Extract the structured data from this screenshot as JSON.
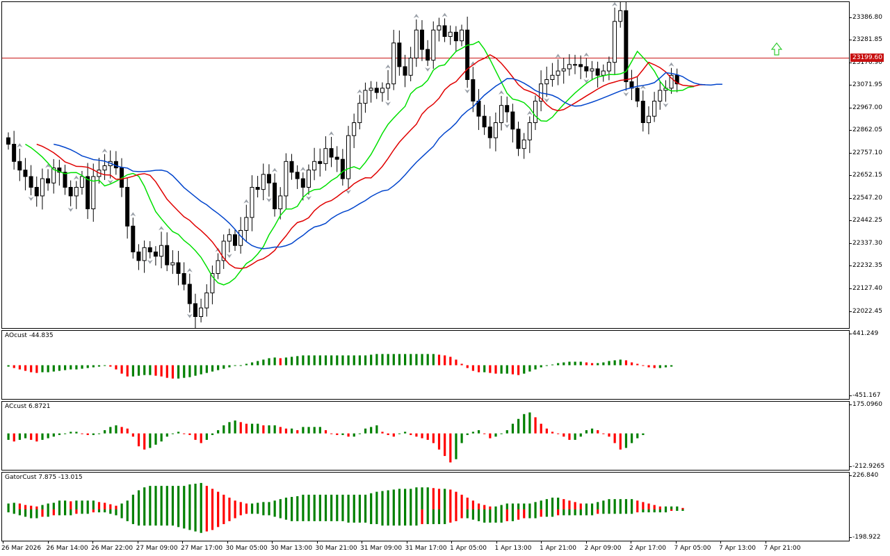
{
  "main": {
    "price_line": "23199.60",
    "y_ticks": [
      "23386.80",
      "23281.85",
      "23176.90",
      "23071.95",
      "22967.00",
      "22862.05",
      "22757.10",
      "22652.15",
      "22547.20",
      "22442.25",
      "22337.30",
      "22232.35",
      "22127.40",
      "22022.45"
    ],
    "colors": {
      "bull": "#ffffff",
      "bear": "#000000",
      "ma_green": "#00e000",
      "ma_red": "#e00000",
      "ma_blue": "#0044cc",
      "price_line": "#c81010",
      "fractal": "#9aa0a8",
      "arrow": "#33cc33"
    }
  },
  "ao": {
    "label": "AOcust -44.835",
    "y_max": "441.249",
    "y_min": "-451.167"
  },
  "ac": {
    "label": "ACcust 6.8721",
    "y_max": "175.0960",
    "y_min": "-212.9265"
  },
  "gator": {
    "label": "GatorCust 7.875 -13.015",
    "y_max": "226.840",
    "y_min": "-198.922"
  },
  "time_axis": [
    "26 Mar 2026",
    "26 Mar 14:00",
    "26 Mar 22:00",
    "27 Mar 09:00",
    "27 Mar 17:00",
    "30 Mar 05:00",
    "30 Mar 13:00",
    "30 Mar 21:00",
    "31 Mar 09:00",
    "31 Mar 17:00",
    "1 Apr 05:00",
    "1 Apr 13:00",
    "1 Apr 21:00",
    "2 Apr 09:00",
    "2 Apr 17:00",
    "7 Apr 05:00",
    "7 Apr 13:00",
    "7 Apr 21:00"
  ],
  "chart_data": [
    {
      "type": "candlestick",
      "ylim": [
        21950,
        23450
      ],
      "price_line": 23199.6,
      "close": [
        22800,
        22720,
        22680,
        22650,
        22600,
        22560,
        22640,
        22620,
        22690,
        22670,
        22600,
        22560,
        22600,
        22650,
        22500,
        22650,
        22680,
        22700,
        22720,
        22690,
        22600,
        22420,
        22300,
        22260,
        22320,
        22300,
        22280,
        22330,
        22240,
        22250,
        22200,
        22150,
        22060,
        22000,
        22040,
        22110,
        22200,
        22260,
        22350,
        22380,
        22330,
        22400,
        22460,
        22600,
        22590,
        22660,
        22620,
        22500,
        22560,
        22720,
        22670,
        22640,
        22600,
        22680,
        22720,
        22710,
        22780,
        22740,
        22730,
        22640,
        22840,
        22900,
        22990,
        23050,
        23060,
        23040,
        23060,
        23080,
        23270,
        23160,
        23120,
        23200,
        23330,
        23240,
        23190,
        23330,
        23350,
        23300,
        23320,
        23280,
        23330,
        23100,
        23000,
        22930,
        22880,
        22830,
        22900,
        22980,
        22950,
        22870,
        22780,
        22820,
        22900,
        23000,
        23080,
        23100,
        23120,
        23140,
        23150,
        23170,
        23170,
        23160,
        23140,
        23150,
        23120,
        23140,
        23180,
        23370,
        23420,
        23090,
        23060,
        23000,
        22900,
        22930,
        23000,
        23050,
        23060,
        23120,
        23080
      ],
      "bull_color": "#ffffff",
      "bear_color": "#000000",
      "moving_averages": [
        {
          "color": "#00e000"
        },
        {
          "color": "#e00000"
        },
        {
          "color": "#0044cc"
        }
      ]
    },
    {
      "type": "bar",
      "name": "AOcust",
      "ylim": [
        -451.167,
        441.249
      ],
      "color_up": "#008000",
      "color_down": "#ff0000",
      "values": [
        -20,
        -40,
        -60,
        -80,
        -100,
        -110,
        -100,
        -100,
        -90,
        -80,
        -70,
        -60,
        -60,
        -50,
        -40,
        -30,
        -20,
        -10,
        -20,
        -60,
        -120,
        -160,
        -160,
        -150,
        -140,
        -140,
        -150,
        -160,
        -180,
        -190,
        -190,
        -180,
        -170,
        -150,
        -130,
        -110,
        -90,
        -70,
        -50,
        -30,
        -10,
        0,
        20,
        40,
        60,
        80,
        100,
        110,
        100,
        110,
        120,
        130,
        140,
        140,
        140,
        140,
        140,
        140,
        140,
        140,
        140,
        140,
        140,
        140,
        150,
        160,
        160,
        160,
        160,
        160,
        160,
        160,
        160,
        160,
        160,
        160,
        150,
        140,
        120,
        80,
        20,
        -40,
        -80,
        -100,
        -100,
        -110,
        -120,
        -120,
        -120,
        -130,
        -140,
        -120,
        -90,
        -60,
        -30,
        -10,
        10,
        30,
        40,
        50,
        50,
        50,
        40,
        30,
        30,
        40,
        60,
        70,
        80,
        70,
        40,
        20,
        0,
        -30,
        -40,
        -40,
        -30,
        -20
      ]
    },
    {
      "type": "bar",
      "name": "ACcust",
      "ylim": [
        -212.9265,
        175.096
      ],
      "color_up": "#008000",
      "color_down": "#ff0000",
      "values": [
        -40,
        -50,
        -40,
        -30,
        -40,
        -50,
        -40,
        -30,
        -20,
        -10,
        0,
        10,
        10,
        0,
        -10,
        -10,
        0,
        20,
        40,
        50,
        40,
        30,
        -20,
        -80,
        -100,
        -90,
        -70,
        -50,
        -20,
        0,
        10,
        0,
        -10,
        -40,
        -60,
        -40,
        -10,
        20,
        50,
        70,
        80,
        70,
        60,
        60,
        60,
        50,
        50,
        50,
        40,
        30,
        30,
        20,
        40,
        40,
        40,
        40,
        20,
        0,
        -10,
        -10,
        -20,
        -20,
        0,
        30,
        40,
        50,
        10,
        -10,
        -20,
        0,
        10,
        -10,
        -20,
        -30,
        -40,
        -60,
        -100,
        -140,
        -180,
        -160,
        -60,
        -10,
        10,
        20,
        0,
        -30,
        -20,
        0,
        20,
        60,
        90,
        120,
        130,
        100,
        60,
        30,
        10,
        0,
        -20,
        -40,
        -40,
        -20,
        20,
        30,
        20,
        0,
        -20,
        -60,
        -100,
        -90,
        -60,
        -30,
        -10
      ]
    },
    {
      "type": "bar",
      "name": "GatorCust",
      "ylim": [
        -198.922,
        226.84
      ],
      "upper": [
        40,
        45,
        40,
        30,
        25,
        20,
        30,
        40,
        45,
        60,
        60,
        55,
        60,
        60,
        60,
        60,
        50,
        45,
        35,
        25,
        40,
        60,
        100,
        130,
        150,
        160,
        160,
        160,
        160,
        160,
        160,
        160,
        170,
        175,
        180,
        160,
        140,
        120,
        100,
        80,
        60,
        50,
        40,
        40,
        45,
        50,
        50,
        60,
        70,
        80,
        85,
        90,
        100,
        100,
        100,
        100,
        100,
        100,
        100,
        100,
        100,
        100,
        100,
        100,
        110,
        120,
        125,
        130,
        135,
        140,
        140,
        140,
        150,
        150,
        150,
        145,
        140,
        140,
        135,
        120,
        100,
        80,
        60,
        40,
        30,
        20,
        20,
        30,
        40,
        40,
        40,
        40,
        40,
        50,
        60,
        70,
        80,
        80,
        70,
        60,
        50,
        40,
        40,
        40,
        50,
        60,
        70,
        70,
        70,
        70,
        70,
        60,
        50,
        40,
        30,
        20,
        20,
        20,
        20,
        10
      ],
      "lower": [
        -20,
        -30,
        -40,
        -50,
        -60,
        -60,
        -50,
        -50,
        -40,
        -40,
        -40,
        -40,
        -30,
        -30,
        -30,
        -20,
        -20,
        -20,
        -30,
        -40,
        -60,
        -80,
        -100,
        -110,
        -110,
        -110,
        -110,
        -110,
        -110,
        -110,
        -120,
        -130,
        -140,
        -150,
        -160,
        -150,
        -140,
        -120,
        -100,
        -80,
        -60,
        -40,
        -30,
        -30,
        -30,
        -40,
        -40,
        -50,
        -60,
        -70,
        -80,
        -80,
        -80,
        -80,
        -80,
        -80,
        -80,
        -80,
        -80,
        -80,
        -90,
        -90,
        -90,
        -90,
        -100,
        -100,
        -110,
        -110,
        -110,
        -110,
        -110,
        -110,
        -110,
        -100,
        -100,
        -100,
        -100,
        -100,
        -90,
        -80,
        -60,
        -60,
        -70,
        -80,
        -90,
        -90,
        -90,
        -90,
        -80,
        -80,
        -70,
        -60,
        -60,
        -60,
        -50,
        -50,
        -50,
        -40,
        -40,
        -40,
        -40,
        -40,
        -40,
        -40,
        -30,
        -30,
        -30,
        -30,
        -30,
        -30,
        -30,
        -20,
        -20,
        -20,
        -20,
        -20,
        -20,
        -10,
        -10,
        -10
      ]
    }
  ]
}
